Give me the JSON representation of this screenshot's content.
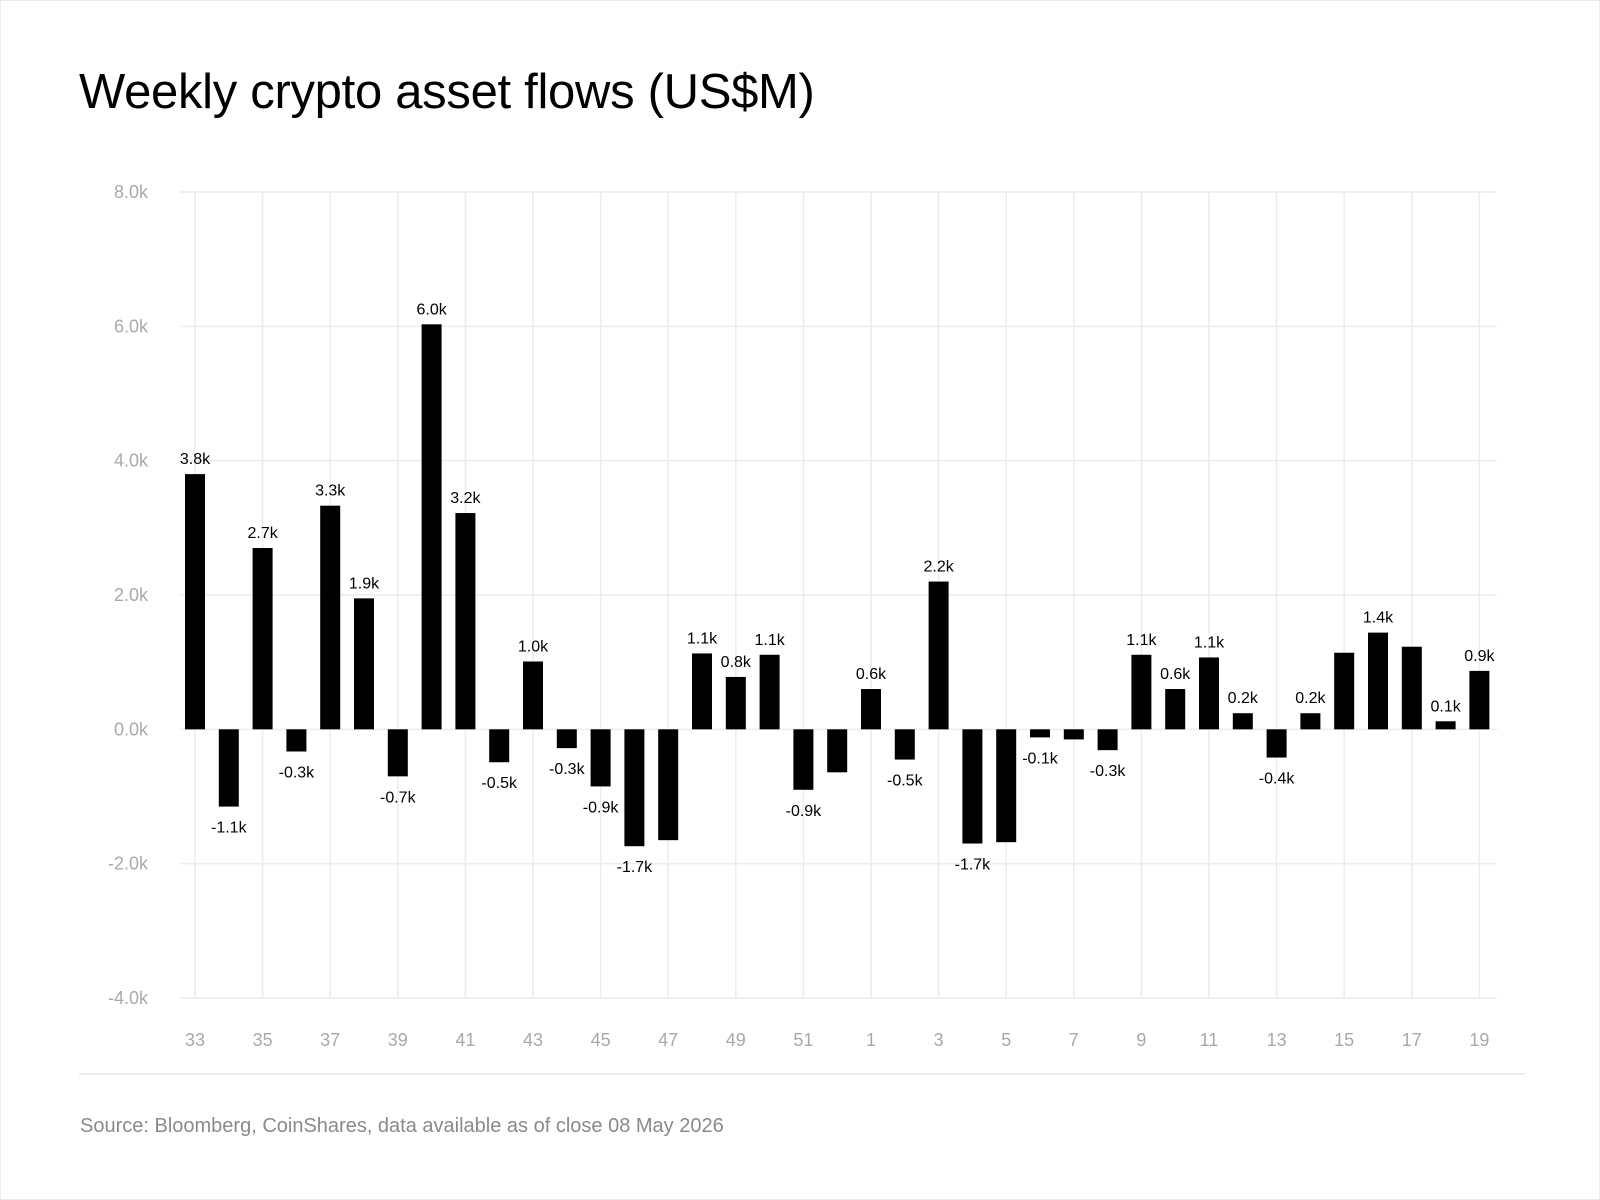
{
  "title": "Weekly crypto asset flows (US$M)",
  "source": "Source: Bloomberg, CoinShares, data available as of close 08 May 2026",
  "colors": {
    "bar": "#000000",
    "grid": "#ececec",
    "tick_text": "#a9a9a9",
    "label_text": "#000000"
  },
  "chart_data": {
    "type": "bar",
    "title": "Weekly crypto asset flows (US$M)",
    "xlabel": "",
    "ylabel": "",
    "ylim": [
      -4000,
      8000
    ],
    "yticks": [
      8000,
      6000,
      4000,
      2000,
      0,
      -2000,
      -4000
    ],
    "ytick_labels": [
      "8.0k",
      "6.0k",
      "4.0k",
      "2.0k",
      "0.0k",
      "-2.0k",
      "-4.0k"
    ],
    "grid": true,
    "categories": [
      "33",
      "34",
      "35",
      "36",
      "37",
      "38",
      "39",
      "40",
      "41",
      "42",
      "43",
      "44",
      "45",
      "46",
      "47",
      "48",
      "49",
      "50",
      "51",
      "52",
      "1",
      "2",
      "3",
      "4",
      "5",
      "6",
      "7",
      "8",
      "9",
      "10",
      "11",
      "12",
      "13",
      "14",
      "15",
      "16",
      "17",
      "18",
      "19"
    ],
    "xtick_labels": [
      "33",
      "35",
      "37",
      "39",
      "41",
      "43",
      "45",
      "47",
      "49",
      "51",
      "1",
      "3",
      "5",
      "7",
      "9",
      "11",
      "13",
      "15",
      "17",
      "19"
    ],
    "values": [
      3800,
      -1150,
      2700,
      -330,
      3330,
      1950,
      -700,
      6030,
      3220,
      -490,
      1010,
      -280,
      -850,
      -1740,
      -1650,
      1130,
      780,
      1110,
      -900,
      -640,
      600,
      -450,
      2200,
      -1700,
      -1680,
      -120,
      -150,
      -310,
      1110,
      600,
      1070,
      240,
      -420,
      240,
      1140,
      1440,
      1230,
      120,
      870
    ],
    "data_labels": [
      "3.8k",
      "-1.1k",
      "2.7k",
      "-0.3k",
      "3.3k",
      "1.9k",
      "-0.7k",
      "6.0k",
      "3.2k",
      "-0.5k",
      "1.0k",
      "-0.3k",
      "-0.9k",
      "-1.7k",
      "",
      "1.1k",
      "0.8k",
      "1.1k",
      "-0.9k",
      "",
      "0.6k",
      "-0.5k",
      "2.2k",
      "-1.7k",
      "",
      "-0.1k",
      "",
      "-0.3k",
      "1.1k",
      "0.6k",
      "1.1k",
      "0.2k",
      "-0.4k",
      "0.2k",
      "",
      "1.4k",
      "",
      "0.1k",
      "0.9k"
    ]
  }
}
